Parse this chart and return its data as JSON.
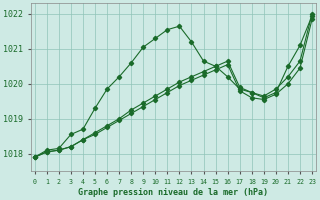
{
  "title": "Graphe pression niveau de la mer (hPa)",
  "background_color": "#ceeae4",
  "grid_color": "#90c4b8",
  "line_color": "#1a6b2a",
  "ylim": [
    1017.5,
    1022.3
  ],
  "xlim": [
    -0.3,
    23.3
  ],
  "yticks": [
    1018,
    1019,
    1020,
    1021,
    1022
  ],
  "xticks": [
    0,
    1,
    2,
    3,
    4,
    5,
    6,
    7,
    8,
    9,
    10,
    11,
    12,
    13,
    14,
    15,
    16,
    17,
    18,
    19,
    20,
    21,
    22,
    23
  ],
  "series1": {
    "x": [
      0,
      1,
      2,
      3,
      4,
      5,
      6,
      7,
      8,
      9,
      10,
      11,
      12,
      13,
      14,
      15,
      16,
      17,
      18,
      19,
      20,
      21,
      22,
      23
    ],
    "y": [
      1017.9,
      1018.1,
      1018.15,
      1018.55,
      1018.7,
      1019.3,
      1019.85,
      1020.2,
      1020.6,
      1021.05,
      1021.3,
      1021.55,
      1021.65,
      1021.2,
      1020.65,
      1020.5,
      1020.2,
      1019.85,
      1019.75,
      1019.6,
      1019.75,
      1020.5,
      1021.1,
      1021.95
    ]
  },
  "series2": {
    "x": [
      0,
      1,
      2,
      3,
      4,
      5,
      6,
      7,
      8,
      9,
      10,
      11,
      12,
      13,
      14,
      15,
      16,
      17,
      18,
      19,
      20,
      21,
      22,
      23
    ],
    "y": [
      1017.9,
      1018.05,
      1018.1,
      1018.2,
      1018.4,
      1018.6,
      1018.8,
      1019.0,
      1019.25,
      1019.45,
      1019.65,
      1019.85,
      1020.05,
      1020.2,
      1020.35,
      1020.5,
      1020.65,
      1019.9,
      1019.75,
      1019.65,
      1019.85,
      1020.2,
      1020.65,
      1022.0
    ]
  },
  "series3": {
    "x": [
      0,
      1,
      2,
      3,
      4,
      5,
      6,
      7,
      8,
      9,
      10,
      11,
      12,
      13,
      14,
      15,
      16,
      17,
      18,
      19,
      20,
      21,
      22,
      23
    ],
    "y": [
      1017.9,
      1018.05,
      1018.1,
      1018.2,
      1018.4,
      1018.55,
      1018.75,
      1018.95,
      1019.15,
      1019.35,
      1019.55,
      1019.75,
      1019.95,
      1020.1,
      1020.25,
      1020.4,
      1020.55,
      1019.8,
      1019.6,
      1019.55,
      1019.7,
      1020.0,
      1020.45,
      1021.85
    ]
  }
}
